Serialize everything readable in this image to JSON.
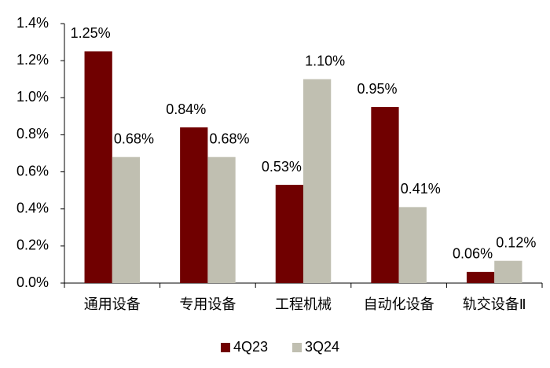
{
  "chart_data": {
    "type": "bar",
    "categories": [
      "通用设备",
      "专用设备",
      "工程机械",
      "自动化设备",
      "轨交设备Ⅱ"
    ],
    "series": [
      {
        "name": "4Q23",
        "color": "#700000",
        "values": [
          1.25,
          0.84,
          0.53,
          0.95,
          0.06
        ],
        "value_labels": [
          "1.25%",
          "0.84%",
          "0.53%",
          "0.95%",
          "0.06%"
        ]
      },
      {
        "name": "3Q24",
        "color": "#c0bfb1",
        "values": [
          0.68,
          0.68,
          1.1,
          0.41,
          0.12
        ],
        "value_labels": [
          "0.68%",
          "0.68%",
          "1.10%",
          "0.41%",
          "0.12%"
        ]
      }
    ],
    "ylim": [
      0,
      1.4
    ],
    "yticks": [
      {
        "value": 0,
        "label": "0.0%"
      },
      {
        "value": 0.2,
        "label": "0.2%"
      },
      {
        "value": 0.4,
        "label": "0.4%"
      },
      {
        "value": 0.6,
        "label": "0.6%"
      },
      {
        "value": 0.8,
        "label": "0.8%"
      },
      {
        "value": 1.0,
        "label": "1.0%"
      },
      {
        "value": 1.2,
        "label": "1.2%"
      },
      {
        "value": 1.4,
        "label": "1.4%"
      }
    ],
    "grid": false,
    "legend": "bottom"
  }
}
